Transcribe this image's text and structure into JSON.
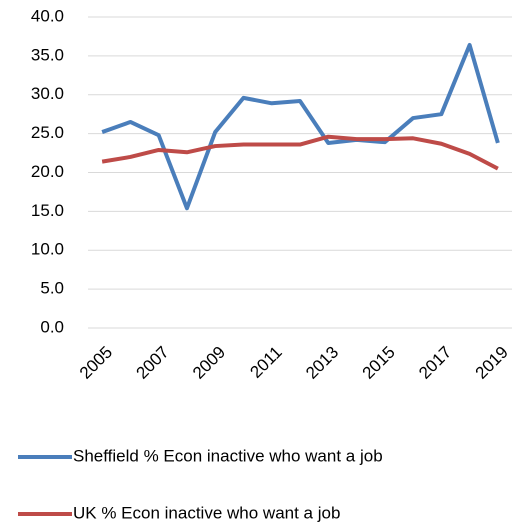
{
  "chart_data": {
    "type": "line",
    "categories": [
      "2005",
      null,
      "2007",
      null,
      "2009",
      null,
      "2011",
      null,
      "2013",
      null,
      "2015",
      null,
      "2017",
      null,
      "2019"
    ],
    "series": [
      {
        "name": "Sheffield % Econ inactive who want a job",
        "color": "#4a7ebb",
        "values": [
          25.2,
          26.5,
          24.8,
          15.4,
          25.2,
          29.6,
          28.9,
          29.2,
          23.8,
          24.2,
          23.9,
          27.0,
          27.5,
          36.4,
          23.8
        ]
      },
      {
        "name": "UK % Econ inactive who want a job",
        "color": "#be4b48",
        "values": [
          21.4,
          22.0,
          22.9,
          22.6,
          23.4,
          23.6,
          23.6,
          23.6,
          24.6,
          24.3,
          24.3,
          24.4,
          23.7,
          22.4,
          20.5
        ]
      }
    ],
    "ylim": [
      0,
      40
    ],
    "yticks": [
      {
        "value": 0,
        "label": "0.0"
      },
      {
        "value": 5,
        "label": "5.0"
      },
      {
        "value": 10,
        "label": "10.0"
      },
      {
        "value": 15,
        "label": "15.0"
      },
      {
        "value": 20,
        "label": "20.0"
      },
      {
        "value": 25,
        "label": "25.0"
      },
      {
        "value": 30,
        "label": "30.0"
      },
      {
        "value": 35,
        "label": "35.0"
      },
      {
        "value": 40,
        "label": "40.0"
      }
    ],
    "grid": true,
    "legend": "bottom"
  }
}
